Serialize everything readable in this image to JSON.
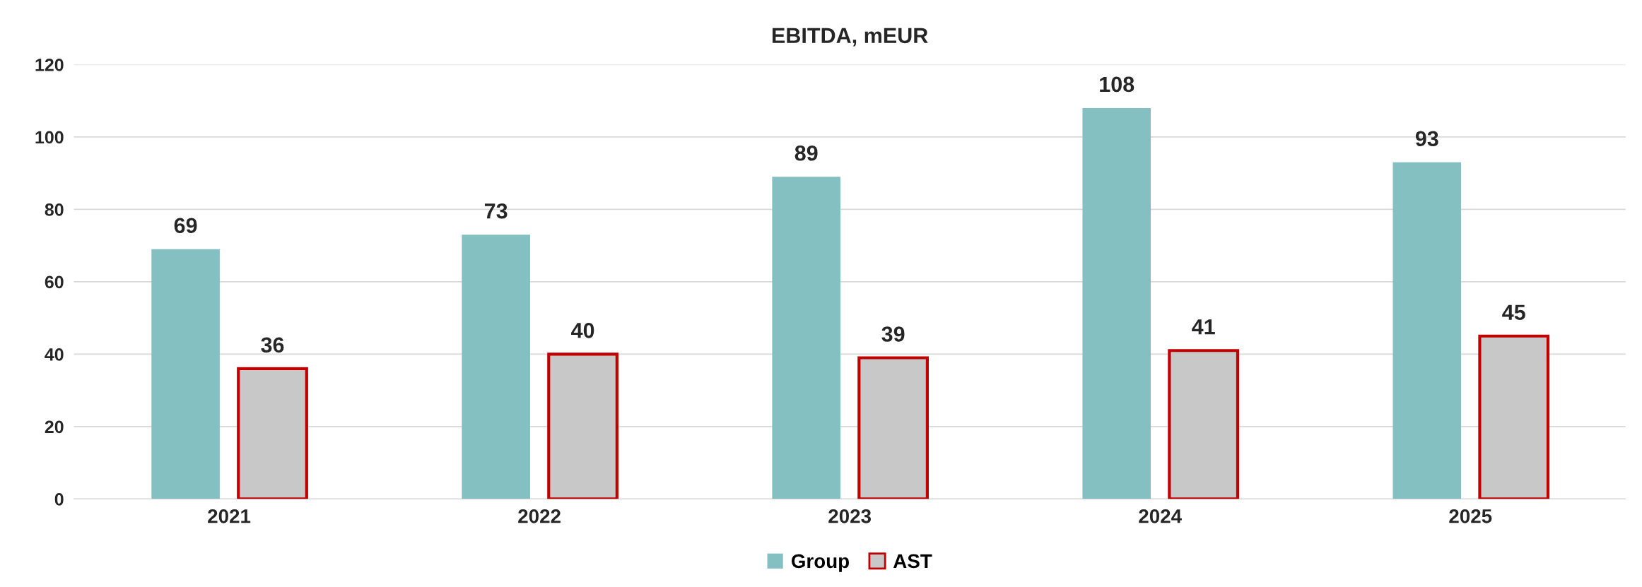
{
  "chart_data": {
    "type": "bar",
    "title": "EBITDA, mEUR",
    "categories": [
      "2021",
      "2022",
      "2023",
      "2024",
      "2025"
    ],
    "series": [
      {
        "name": "Group",
        "color": "#84c0c2",
        "values": [
          69,
          73,
          89,
          108,
          93
        ]
      },
      {
        "name": "AST",
        "color": "#c8c8c8",
        "values": [
          36,
          40,
          39,
          41,
          45
        ]
      }
    ],
    "ylim": [
      0,
      120
    ],
    "yticks": [
      0,
      20,
      40,
      60,
      80,
      100,
      120
    ],
    "grid": "y",
    "legend": "bottom",
    "data_labels": true
  }
}
